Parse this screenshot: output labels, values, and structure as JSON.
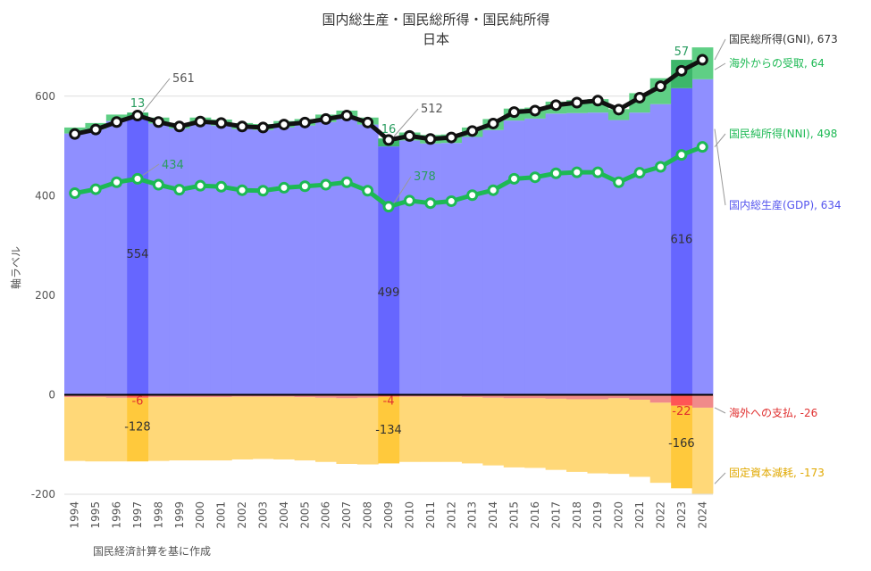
{
  "chart_data": {
    "type": "area",
    "title": "国内総生産・国民総所得・国民純所得",
    "subtitle": "日本",
    "ylabel": "軸ラベル",
    "xlabel": "",
    "source": "国民経済計算を基に作成",
    "ylim": [
      -200,
      700
    ],
    "yticks": [
      -200,
      0,
      200,
      400,
      600
    ],
    "x": [
      1994,
      1995,
      1996,
      1997,
      1998,
      1999,
      2000,
      2001,
      2002,
      2003,
      2004,
      2005,
      2006,
      2007,
      2008,
      2009,
      2010,
      2011,
      2012,
      2013,
      2014,
      2015,
      2016,
      2017,
      2018,
      2019,
      2020,
      2021,
      2022,
      2023,
      2024
    ],
    "x_labels": [
      "1994",
      "1995",
      "1996",
      "1997",
      "1998",
      "1999",
      "2000",
      "2001",
      "2002",
      "2003",
      "2004",
      "2005",
      "2006",
      "2007",
      "2008",
      "2009",
      "2010",
      "2011",
      "2012",
      "2013",
      "2014",
      "2015",
      "2016",
      "2017",
      "2018",
      "2019",
      "2020",
      "2021",
      "2022",
      "2023",
      "2024"
    ],
    "series": [
      {
        "key": "gdp",
        "name": "国内総生産(GDP)",
        "color": "#8f8fff",
        "values": [
          525,
          534,
          550,
          554,
          545,
          535,
          545,
          541,
          534,
          532,
          537,
          541,
          548,
          554,
          543,
          499,
          511,
          505,
          506,
          518,
          532,
          551,
          555,
          565,
          566,
          567,
          552,
          567,
          584,
          616,
          634
        ]
      },
      {
        "key": "receipts",
        "name": "海外からの受取",
        "color": "#5fcf85",
        "values": [
          12,
          12,
          13,
          13,
          12,
          11,
          12,
          12,
          12,
          12,
          13,
          13,
          15,
          17,
          14,
          16,
          16,
          17,
          17,
          19,
          22,
          24,
          22,
          24,
          26,
          27,
          22,
          39,
          52,
          57,
          64
        ]
      },
      {
        "key": "payments",
        "name": "海外への支払",
        "color": "#f08a8a",
        "values": [
          -5,
          -5,
          -6,
          -6,
          -5,
          -5,
          -5,
          -5,
          -4,
          -4,
          -4,
          -5,
          -6,
          -7,
          -6,
          -4,
          -4,
          -4,
          -4,
          -5,
          -6,
          -7,
          -7,
          -8,
          -9,
          -9,
          -7,
          -10,
          -16,
          -22,
          -26
        ]
      },
      {
        "key": "depreciation",
        "name": "固定資本減耗",
        "color": "#ffd878",
        "values": [
          -128,
          -129,
          -128,
          -128,
          -128,
          -127,
          -127,
          -127,
          -126,
          -125,
          -126,
          -127,
          -129,
          -132,
          -134,
          -134,
          -131,
          -131,
          -131,
          -133,
          -136,
          -139,
          -140,
          -143,
          -146,
          -149,
          -152,
          -155,
          -161,
          -166,
          -173
        ]
      },
      {
        "key": "gni",
        "name": "国民総所得(GNI)",
        "color": "#111111",
        "values": [
          524,
          533,
          548,
          561,
          548,
          539,
          549,
          546,
          539,
          537,
          543,
          547,
          554,
          561,
          547,
          512,
          520,
          514,
          517,
          530,
          545,
          568,
          571,
          582,
          587,
          591,
          573,
          597,
          620,
          651,
          673
        ]
      },
      {
        "key": "nni",
        "name": "国民純所得(NNI)",
        "color": "#1db954",
        "values": [
          405,
          413,
          427,
          434,
          422,
          412,
          420,
          418,
          411,
          410,
          416,
          419,
          422,
          427,
          410,
          378,
          390,
          385,
          389,
          401,
          411,
          434,
          437,
          445,
          447,
          447,
          427,
          446,
          458,
          482,
          498
        ]
      }
    ],
    "highlight_years": [
      1997,
      2009,
      2023
    ],
    "annotations": [
      {
        "text": "561",
        "color": "#555555"
      },
      {
        "text": "434",
        "color": "#2a9d60"
      },
      {
        "text": "13",
        "color": "#2a9d60"
      },
      {
        "text": "554",
        "color": "#333333"
      },
      {
        "text": "-6",
        "color": "#e03030"
      },
      {
        "text": "-128",
        "color": "#333333"
      },
      {
        "text": "512",
        "color": "#555555"
      },
      {
        "text": "378",
        "color": "#2a9d60"
      },
      {
        "text": "16",
        "color": "#2a9d60"
      },
      {
        "text": "499",
        "color": "#333333"
      },
      {
        "text": "-4",
        "color": "#e03030"
      },
      {
        "text": "-134",
        "color": "#333333"
      },
      {
        "text": "57",
        "color": "#2a9d60"
      },
      {
        "text": "616",
        "color": "#333333"
      },
      {
        "text": "-22",
        "color": "#e03030"
      },
      {
        "text": "-166",
        "color": "#333333"
      }
    ],
    "end_labels": [
      {
        "text": "国民総所得(GNI), 673",
        "color": "#333333"
      },
      {
        "text": "海外からの受取, 64",
        "color": "#1db954"
      },
      {
        "text": "国民純所得(NNI), 498",
        "color": "#1db954"
      },
      {
        "text": "国内総生産(GDP), 634",
        "color": "#5555ee"
      },
      {
        "text": "海外への支払, -26",
        "color": "#e03030"
      },
      {
        "text": "固定資本減耗, -173",
        "color": "#e0a800"
      }
    ]
  }
}
